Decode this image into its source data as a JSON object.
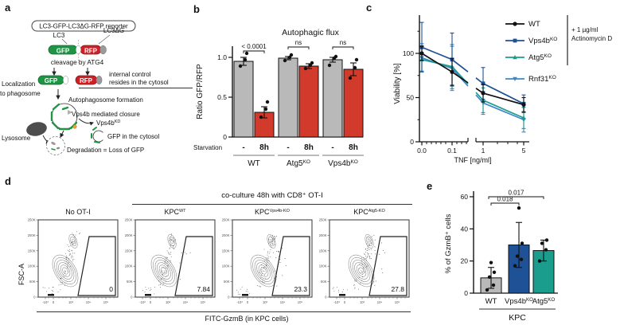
{
  "panels": {
    "a": "a",
    "b": "b",
    "c": "c",
    "d": "d",
    "e": "e"
  },
  "panel_a": {
    "reporter_label": "LC3-GFP-LC3ΔG-RFP reporter",
    "lc3": "LC3",
    "lc3dg": "LC3ΔG",
    "gfp": "GFP",
    "rfp": "RFP",
    "cleavage": "cleavage by ATG4",
    "internal_control_1": "internal control",
    "internal_control_2": "resides in the cytosol",
    "localization_1": "Localization",
    "localization_2": "to phagosome",
    "autophagosome": "Autophagosome formation",
    "vps4b_closure": "Vps4b mediated closure",
    "vps4b_kd": "Vps4b",
    "vps4b_kd_sup": "KD",
    "gfp_cytosol": "GFP in the cytosol",
    "lysosome": "Lysosome",
    "degradation": "Degradation = Loss of GFP",
    "colors": {
      "gfp": "#1e9444",
      "rfp": "#cb2127",
      "cap_gray": "#9a9a9a",
      "orange": "#e8a33d"
    }
  },
  "panel_d": {
    "header": "co-culture 48h with CD8⁺ OT-I",
    "xlabel": "FITC-GzmB (in KPC cells)",
    "ylabel": "FSC-A",
    "ytick_labels": [
      "250K",
      "200K",
      "150K",
      "100K",
      "50K",
      "0"
    ],
    "xtick_labels": [
      "-10³",
      "0",
      "10³",
      "10⁴",
      "10⁵"
    ],
    "plots": [
      {
        "title": "No OT-I",
        "title_sup": "",
        "pct": "0"
      },
      {
        "title": "KPC",
        "title_sup": "WT",
        "pct": "7.84"
      },
      {
        "title": "KPC",
        "title_sup": "Vps4b-KO",
        "pct": "23.3"
      },
      {
        "title": "KPC",
        "title_sup": "Atg5-KO",
        "pct": "27.8"
      }
    ]
  },
  "chart_data": [
    {
      "id": "b",
      "type": "bar",
      "title": "Autophagic flux",
      "ylabel": "Ratio GFP/RFP",
      "yticks": [
        "0",
        "0.5",
        "1.0"
      ],
      "ytick_values": [
        0,
        0.5,
        1.0
      ],
      "ylim": [
        0,
        1.15
      ],
      "row_label": "Starvation",
      "bar_colors": {
        "gray": "#b9b9b9",
        "red": "#d23b2b"
      },
      "groups": [
        {
          "name": "WT",
          "sup": "",
          "comparison": "< 0.0001",
          "bars": [
            {
              "label": "-",
              "value": 0.95,
              "err": 0.05,
              "color": "gray",
              "points": [
                0.89,
                0.97,
                1.05
              ]
            },
            {
              "label": "8h",
              "value": 0.31,
              "err": 0.07,
              "color": "red",
              "points": [
                0.25,
                0.35,
                0.44
              ]
            }
          ]
        },
        {
          "name": "Atg5",
          "sup": "KO",
          "comparison": "ns",
          "bars": [
            {
              "label": "-",
              "value": 0.99,
              "err": 0.02,
              "color": "gray",
              "points": [
                0.96,
                1.0,
                1.03
              ]
            },
            {
              "label": "8h",
              "value": 0.89,
              "err": 0.03,
              "color": "red",
              "points": [
                0.86,
                0.9,
                0.93
              ]
            }
          ]
        },
        {
          "name": "Vps4b",
          "sup": "KO",
          "comparison": "ns",
          "bars": [
            {
              "label": "-",
              "value": 0.97,
              "err": 0.03,
              "color": "gray",
              "points": [
                0.9,
                0.99,
                1.01
              ]
            },
            {
              "label": "8h",
              "value": 0.85,
              "err": 0.08,
              "color": "red",
              "points": [
                0.74,
                0.87,
                0.97
              ]
            }
          ]
        }
      ]
    },
    {
      "id": "c",
      "type": "line",
      "xlabel": "TNF [ng/ml]",
      "ylabel": "Viability [%]",
      "x": [
        0,
        0.1,
        1,
        5
      ],
      "xtick_labels": [
        "0.0",
        "0.1",
        "1",
        "5"
      ],
      "yticks": [
        "0",
        "50",
        "100"
      ],
      "ytick_values": [
        0,
        50,
        100
      ],
      "axis_break": true,
      "legend_note_1": "+ 1 µg/ml",
      "legend_note_2": "Actinomycin D",
      "series": [
        {
          "name": "WT",
          "sup": "",
          "marker": "circle",
          "color": "#111111",
          "values": [
            100,
            79,
            55,
            42
          ],
          "errors": [
            8,
            15,
            10,
            8
          ]
        },
        {
          "name": "Vps4b",
          "sup": "KO",
          "marker": "square",
          "color": "#1e5196",
          "values": [
            107,
            93,
            66,
            43
          ],
          "errors": [
            28,
            30,
            18,
            10
          ]
        },
        {
          "name": "Atg5",
          "sup": "KO",
          "marker": "triangle-up",
          "color": "#1a9d8d",
          "values": [
            93,
            85,
            47,
            27
          ],
          "errors": [
            13,
            25,
            14,
            12
          ]
        },
        {
          "name": "Rnf31",
          "sup": "KO",
          "marker": "triangle-down",
          "color": "#3f87c9",
          "values": [
            95,
            83,
            44,
            25
          ],
          "errors": [
            16,
            25,
            13,
            14
          ]
        }
      ]
    },
    {
      "id": "e",
      "type": "bar",
      "ylabel": "% of GzmB⁺ cells",
      "yticks": [
        "0",
        "20",
        "40",
        "60"
      ],
      "ytick_values": [
        0,
        20,
        40,
        60
      ],
      "ylim": [
        0,
        60
      ],
      "group_label": "KPC",
      "categories": [
        {
          "name": "WT",
          "sup": "",
          "value": 9.5,
          "err": 6.5,
          "color": "#b9b9b9",
          "points": [
            2,
            5,
            10,
            13,
            19
          ]
        },
        {
          "name": "Vps4b",
          "sup": "KO",
          "value": 30,
          "err": 14,
          "color": "#1e5196",
          "points": [
            17,
            21,
            23,
            31,
            53
          ]
        },
        {
          "name": "Atg5",
          "sup": "KO",
          "value": 26.5,
          "err": 6.5,
          "color": "#1a9d8d",
          "points": [
            20,
            27,
            31,
            33
          ]
        }
      ],
      "comparisons": [
        {
          "label": "0.018",
          "from": 0,
          "to": 1
        },
        {
          "label": "0.017",
          "from": 0,
          "to": 2
        }
      ]
    }
  ]
}
